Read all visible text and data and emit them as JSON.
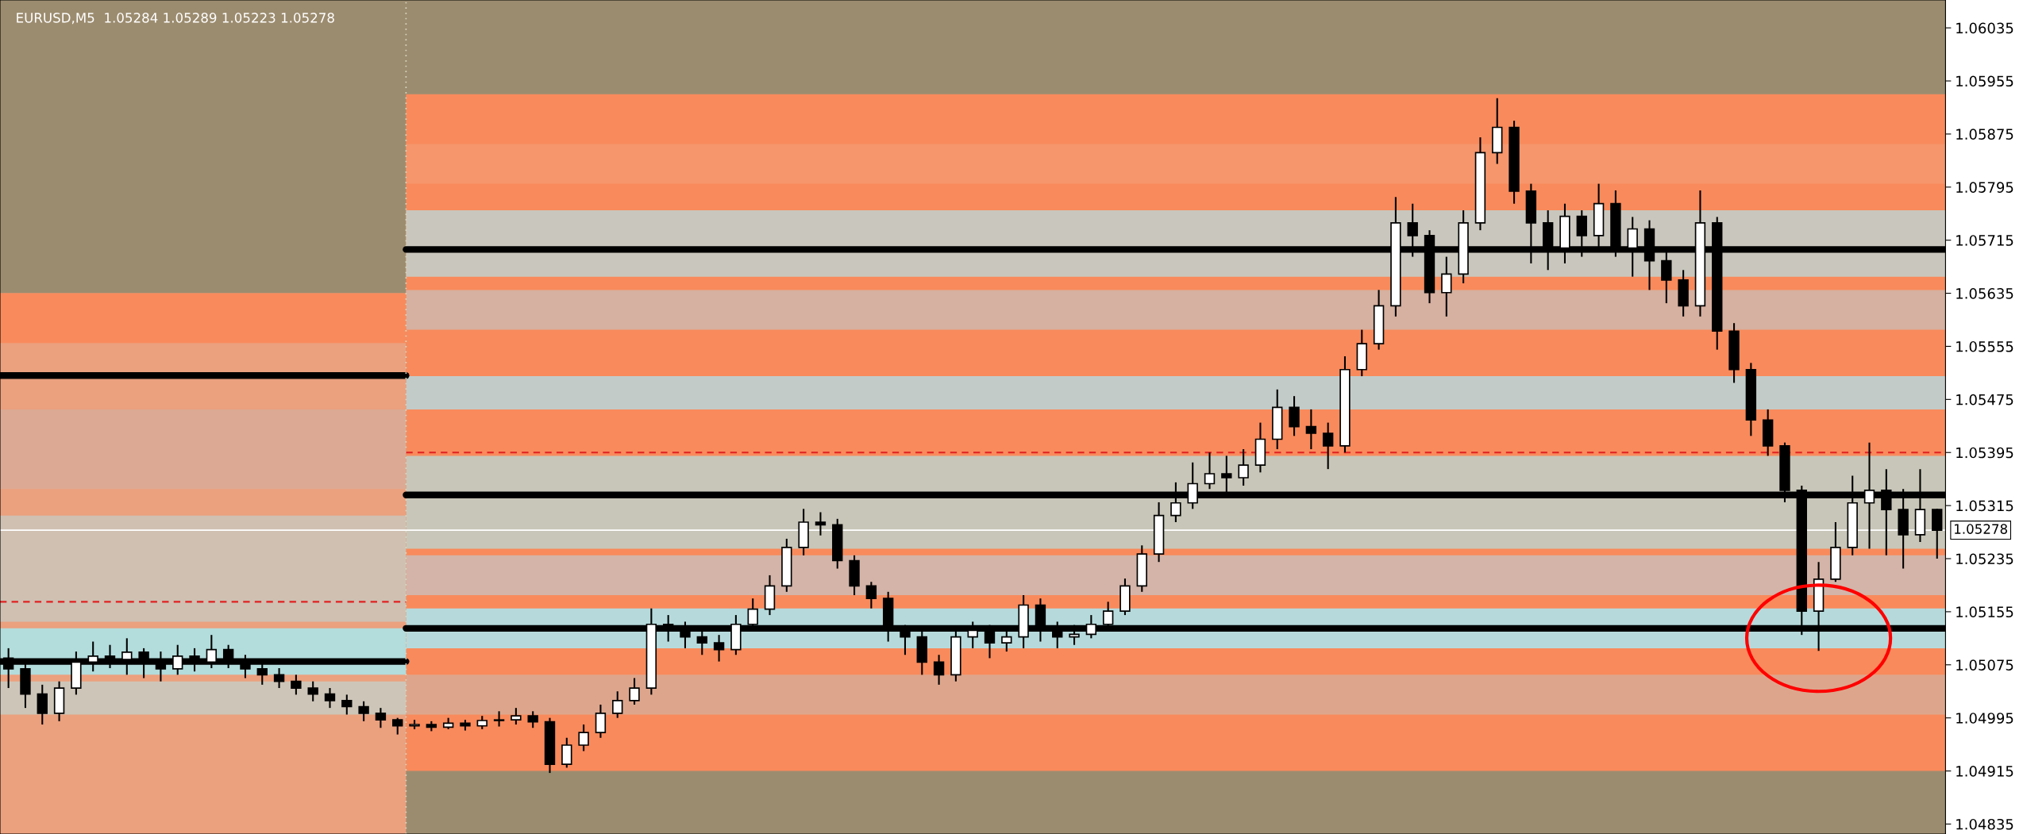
{
  "chart_data": {
    "type": "candlestick",
    "title": "EURUSD,M5  1.05284 1.05289 1.05223 1.05278",
    "categories": [
      null,
      null,
      null,
      null,
      null,
      null,
      null,
      null,
      null,
      null,
      null,
      null,
      null,
      null,
      null,
      null,
      null,
      null,
      null,
      null,
      null,
      null,
      null,
      null,
      null,
      null,
      null,
      null,
      null,
      null,
      null,
      null,
      null,
      null,
      null,
      null,
      null,
      null,
      null,
      null,
      null,
      null,
      null,
      null,
      null,
      null,
      null,
      null,
      null,
      null,
      null,
      null,
      null,
      null,
      null,
      null,
      null,
      null,
      null,
      null,
      null,
      null,
      null,
      null,
      null,
      null,
      null,
      null,
      null,
      null,
      null,
      null,
      null,
      null,
      null,
      null,
      null,
      null,
      null,
      null,
      null,
      null,
      null,
      null,
      null,
      null,
      null,
      null,
      null,
      null,
      null,
      null,
      null,
      null,
      null,
      null,
      null,
      null,
      null,
      null,
      null,
      null,
      null,
      null,
      null,
      null,
      null,
      null,
      null,
      null,
      null,
      null,
      null,
      null,
      null
    ],
    "ohlc": [
      [
        1.05085,
        1.051,
        1.0504,
        1.05069
      ],
      [
        1.05069,
        1.0508,
        1.0501,
        1.05031
      ],
      [
        1.05031,
        1.05045,
        1.04985,
        1.05002
      ],
      [
        1.05002,
        1.0505,
        1.0499,
        1.0504
      ],
      [
        1.0504,
        1.05095,
        1.0503,
        1.05079
      ],
      [
        1.05079,
        1.0511,
        1.05065,
        1.05088
      ],
      [
        1.05088,
        1.05105,
        1.0507,
        1.05083
      ],
      [
        1.05083,
        1.05115,
        1.0506,
        1.05094
      ],
      [
        1.05094,
        1.051,
        1.05055,
        1.05079
      ],
      [
        1.05079,
        1.05095,
        1.0505,
        1.05069
      ],
      [
        1.05069,
        1.05105,
        1.0506,
        1.05088
      ],
      [
        1.05088,
        1.051,
        1.05065,
        1.05079
      ],
      [
        1.05079,
        1.0512,
        1.0507,
        1.05098
      ],
      [
        1.05098,
        1.05105,
        1.0507,
        1.05083
      ],
      [
        1.05083,
        1.0509,
        1.05055,
        1.05069
      ],
      [
        1.05069,
        1.0508,
        1.05045,
        1.0506
      ],
      [
        1.0506,
        1.0507,
        1.0504,
        1.0505
      ],
      [
        1.0505,
        1.0506,
        1.0503,
        1.0504
      ],
      [
        1.0504,
        1.0505,
        1.0502,
        1.05031
      ],
      [
        1.05031,
        1.0504,
        1.0501,
        1.05021
      ],
      [
        1.05021,
        1.0503,
        1.05,
        1.05012
      ],
      [
        1.05012,
        1.0502,
        1.0499,
        1.05002
      ],
      [
        1.05002,
        1.0501,
        1.0498,
        1.04992
      ],
      [
        1.04992,
        1.04995,
        1.0497,
        1.04983
      ],
      [
        1.04983,
        1.04992,
        1.04978,
        1.04985
      ],
      [
        1.04985,
        1.0499,
        1.04975,
        1.04981
      ],
      [
        1.04981,
        1.04995,
        1.04978,
        1.04987
      ],
      [
        1.04987,
        1.04992,
        1.04976,
        1.04983
      ],
      [
        1.04983,
        1.04998,
        1.04978,
        1.04991
      ],
      [
        1.04991,
        1.05005,
        1.04982,
        1.04992
      ],
      [
        1.04992,
        1.0501,
        1.04985,
        1.04998
      ],
      [
        1.04998,
        1.05005,
        1.0498,
        1.04989
      ],
      [
        1.04989,
        1.04995,
        1.04912,
        1.04925
      ],
      [
        1.04925,
        1.04965,
        1.0492,
        1.04954
      ],
      [
        1.04954,
        1.04985,
        1.04945,
        1.04973
      ],
      [
        1.04973,
        1.05015,
        1.04965,
        1.05002
      ],
      [
        1.05002,
        1.05035,
        1.04995,
        1.05021
      ],
      [
        1.05021,
        1.05055,
        1.05015,
        1.0504
      ],
      [
        1.0504,
        1.0516,
        1.0503,
        1.05136
      ],
      [
        1.05136,
        1.0515,
        1.0511,
        1.05127
      ],
      [
        1.05127,
        1.0514,
        1.051,
        1.05117
      ],
      [
        1.05117,
        1.0513,
        1.0509,
        1.05108
      ],
      [
        1.05108,
        1.0512,
        1.0508,
        1.05098
      ],
      [
        1.05098,
        1.0515,
        1.0509,
        1.05136
      ],
      [
        1.05136,
        1.05175,
        1.05125,
        1.05159
      ],
      [
        1.05159,
        1.0521,
        1.0515,
        1.05194
      ],
      [
        1.05194,
        1.05265,
        1.05185,
        1.05252
      ],
      [
        1.05252,
        1.0531,
        1.0524,
        1.0529
      ],
      [
        1.0529,
        1.05305,
        1.0527,
        1.05286
      ],
      [
        1.05286,
        1.05295,
        1.0522,
        1.05232
      ],
      [
        1.05232,
        1.0524,
        1.0518,
        1.05194
      ],
      [
        1.05194,
        1.052,
        1.0516,
        1.05175
      ],
      [
        1.05175,
        1.05185,
        1.0511,
        1.05127
      ],
      [
        1.05127,
        1.05135,
        1.0509,
        1.05117
      ],
      [
        1.05117,
        1.0513,
        1.0506,
        1.05079
      ],
      [
        1.05079,
        1.0509,
        1.05045,
        1.0506
      ],
      [
        1.0506,
        1.0513,
        1.0505,
        1.05117
      ],
      [
        1.05117,
        1.0514,
        1.051,
        1.05127
      ],
      [
        1.05127,
        1.05135,
        1.05085,
        1.05108
      ],
      [
        1.05108,
        1.0513,
        1.05095,
        1.05117
      ],
      [
        1.05117,
        1.0518,
        1.051,
        1.05165
      ],
      [
        1.05165,
        1.05175,
        1.0511,
        1.05127
      ],
      [
        1.05127,
        1.0514,
        1.051,
        1.05117
      ],
      [
        1.05117,
        1.05135,
        1.05105,
        1.05121
      ],
      [
        1.05121,
        1.0515,
        1.05115,
        1.05136
      ],
      [
        1.05136,
        1.0517,
        1.0513,
        1.05156
      ],
      [
        1.05156,
        1.05205,
        1.0515,
        1.05194
      ],
      [
        1.05194,
        1.05255,
        1.05185,
        1.05242
      ],
      [
        1.05242,
        1.0532,
        1.0523,
        1.053
      ],
      [
        1.053,
        1.0535,
        1.0529,
        1.05319
      ],
      [
        1.05319,
        1.0538,
        1.0531,
        1.05348
      ],
      [
        1.05348,
        1.05395,
        1.0534,
        1.05363
      ],
      [
        1.05363,
        1.0539,
        1.0533,
        1.05357
      ],
      [
        1.05357,
        1.054,
        1.05345,
        1.05376
      ],
      [
        1.05376,
        1.0544,
        1.05365,
        1.05415
      ],
      [
        1.05415,
        1.0549,
        1.054,
        1.05463
      ],
      [
        1.05463,
        1.0548,
        1.0542,
        1.05434
      ],
      [
        1.05434,
        1.0546,
        1.054,
        1.05424
      ],
      [
        1.05424,
        1.0544,
        1.0537,
        1.05405
      ],
      [
        1.05405,
        1.0554,
        1.05395,
        1.0552
      ],
      [
        1.0552,
        1.0558,
        1.0551,
        1.05559
      ],
      [
        1.05559,
        1.0564,
        1.0555,
        1.05616
      ],
      [
        1.05616,
        1.0578,
        1.056,
        1.05741
      ],
      [
        1.05741,
        1.0577,
        1.0569,
        1.05722
      ],
      [
        1.05722,
        1.0573,
        1.0562,
        1.05636
      ],
      [
        1.05636,
        1.0569,
        1.056,
        1.05664
      ],
      [
        1.05664,
        1.0576,
        1.0565,
        1.05741
      ],
      [
        1.05741,
        1.0587,
        1.0573,
        1.05847
      ],
      [
        1.05847,
        1.05929,
        1.0583,
        1.05885
      ],
      [
        1.05885,
        1.05895,
        1.0577,
        1.05789
      ],
      [
        1.05789,
        1.058,
        1.0568,
        1.05741
      ],
      [
        1.05741,
        1.0576,
        1.0567,
        1.05703
      ],
      [
        1.05703,
        1.0577,
        1.0568,
        1.05751
      ],
      [
        1.05751,
        1.0576,
        1.0569,
        1.05722
      ],
      [
        1.05722,
        1.058,
        1.057,
        1.0577
      ],
      [
        1.0577,
        1.0579,
        1.0569,
        1.05703
      ],
      [
        1.05703,
        1.0575,
        1.0566,
        1.05732
      ],
      [
        1.05732,
        1.05745,
        1.0564,
        1.05684
      ],
      [
        1.05684,
        1.057,
        1.0562,
        1.05655
      ],
      [
        1.05655,
        1.0567,
        1.056,
        1.05616
      ],
      [
        1.05616,
        1.0579,
        1.056,
        1.05741
      ],
      [
        1.05741,
        1.0575,
        1.0555,
        1.05578
      ],
      [
        1.05578,
        1.0559,
        1.055,
        1.0552
      ],
      [
        1.0552,
        1.0553,
        1.0542,
        1.05444
      ],
      [
        1.05444,
        1.0546,
        1.0539,
        1.05405
      ],
      [
        1.05405,
        1.0541,
        1.0532,
        1.05338
      ],
      [
        1.05338,
        1.05345,
        1.0512,
        1.05156
      ],
      [
        1.05156,
        1.0523,
        1.05096,
        1.05204
      ],
      [
        1.05204,
        1.0529,
        1.052,
        1.05252
      ],
      [
        1.05252,
        1.0536,
        1.0524,
        1.05319
      ],
      [
        1.05319,
        1.0541,
        1.0525,
        1.05338
      ],
      [
        1.05338,
        1.0537,
        1.0524,
        1.05309
      ],
      [
        1.05309,
        1.0534,
        1.0522,
        1.05271
      ],
      [
        1.05271,
        1.0537,
        1.0526,
        1.05309
      ],
      [
        1.05309,
        1.0531,
        1.05235,
        1.05278
      ]
    ],
    "ref_lines": [
      {
        "axis": "y",
        "value": 1.05278,
        "label": "1.05278",
        "color": "#ffffff",
        "line_style": "solid"
      },
      {
        "axis": "y",
        "value": 1.05701,
        "color": "#000000",
        "line_style": "solid"
      },
      {
        "axis": "y",
        "value": 1.05331,
        "color": "#000000",
        "line_style": "solid"
      },
      {
        "axis": "y",
        "value": 1.0513,
        "color": "#000000",
        "line_style": "solid"
      },
      {
        "axis": "y",
        "value": 1.05395,
        "color": "#e02020",
        "line_style": "dashed"
      }
    ],
    "ylim": [
      1.0482,
      1.06077
    ],
    "yticks": [
      1.06035,
      1.05955,
      1.05875,
      1.05795,
      1.05715,
      1.05635,
      1.05555,
      1.05475,
      1.05395,
      1.05315,
      1.05235,
      1.05155,
      1.05075,
      1.04995,
      1.04915,
      1.04835
    ],
    "tick_labels": "y",
    "grid": false,
    "legend": false
  }
}
